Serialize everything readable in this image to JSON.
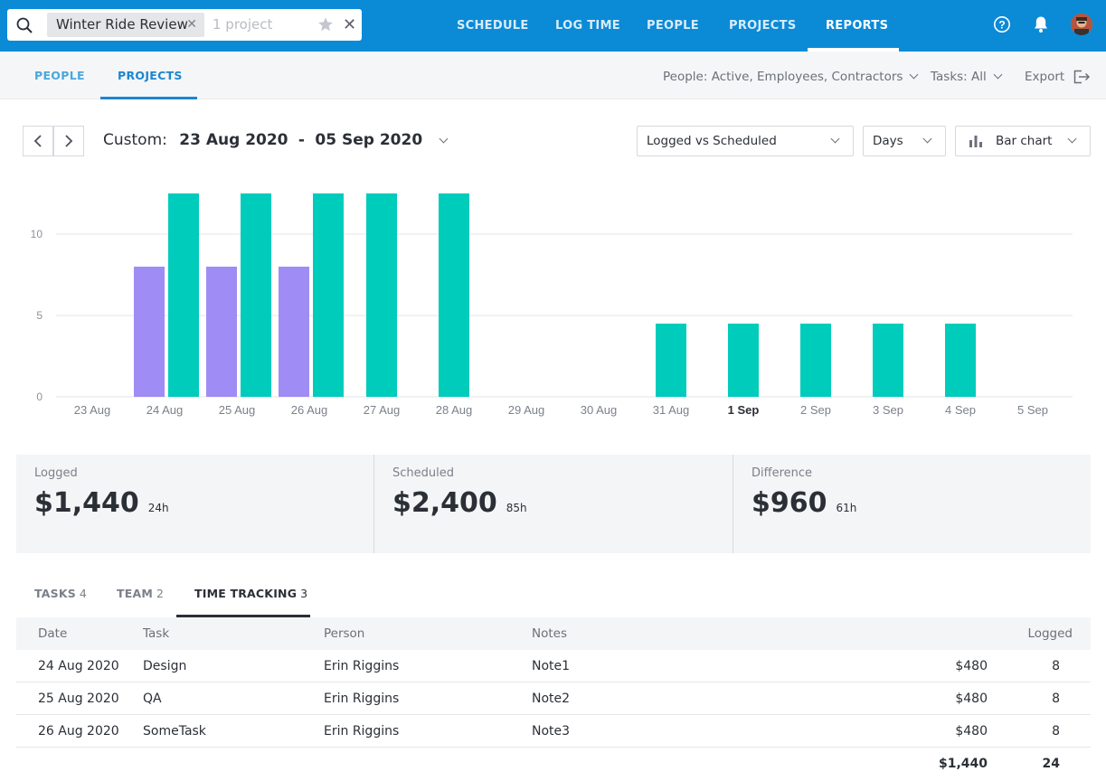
{
  "search": {
    "chip": "Winter Ride Review",
    "placeholder": "1 project"
  },
  "nav": [
    "SCHEDULE",
    "LOG TIME",
    "PEOPLE",
    "PROJECTS",
    "REPORTS"
  ],
  "nav_active": "REPORTS",
  "subnav": {
    "tab_people": "PEOPLE",
    "tab_projects": "PROJECTS",
    "people_filter": "People: Active, Employees, Contractors",
    "tasks_filter": "Tasks: All",
    "export": "Export"
  },
  "controls": {
    "range_prefix": "Custom:",
    "range_start": "23 Aug 2020",
    "range_sep": "-",
    "range_end": "05 Sep 2020",
    "metric_select": "Logged vs Scheduled",
    "interval_select": "Days",
    "chart_type_select": "Bar chart"
  },
  "chart_data": {
    "type": "bar",
    "categories": [
      "23 Aug",
      "24 Aug",
      "25 Aug",
      "26 Aug",
      "27 Aug",
      "28 Aug",
      "29 Aug",
      "30 Aug",
      "31 Aug",
      "1 Sep",
      "2 Sep",
      "3 Sep",
      "4 Sep",
      "5 Sep"
    ],
    "highlight_category": "1 Sep",
    "series": [
      {
        "values": [
          0,
          8,
          8,
          8,
          0,
          0,
          0,
          0,
          0,
          0,
          0,
          0,
          0,
          0
        ],
        "color": "#a08cf5"
      },
      {
        "values": [
          0,
          12.5,
          12.5,
          12.5,
          12.5,
          12.5,
          0,
          0,
          4.5,
          4.5,
          4.5,
          4.5,
          4.5,
          0
        ],
        "color": "#00ccbb"
      }
    ],
    "yticks": [
      0,
      5,
      10
    ],
    "ylim": [
      0,
      12.5
    ],
    "grid": true
  },
  "summary": {
    "logged": {
      "label": "Logged",
      "amount": "$1,440",
      "hours": "24h"
    },
    "scheduled": {
      "label": "Scheduled",
      "amount": "$2,400",
      "hours": "85h"
    },
    "difference": {
      "label": "Difference",
      "amount": "$960",
      "hours": "61h"
    }
  },
  "tabs": {
    "tasks": {
      "label": "TASKS",
      "count": "4"
    },
    "team": {
      "label": "TEAM",
      "count": "2"
    },
    "time": {
      "label": "TIME TRACKING",
      "count": "3"
    }
  },
  "table": {
    "headers": {
      "date": "Date",
      "task": "Task",
      "person": "Person",
      "notes": "Notes",
      "logged": "Logged"
    },
    "rows": [
      {
        "date": "24 Aug 2020",
        "task": "Design",
        "person": "Erin Riggins",
        "notes": "Note1",
        "amount": "$480",
        "hours": "8"
      },
      {
        "date": "25 Aug 2020",
        "task": "QA",
        "person": "Erin Riggins",
        "notes": "Note2",
        "amount": "$480",
        "hours": "8"
      },
      {
        "date": "26 Aug 2020",
        "task": "SomeTask",
        "person": "Erin Riggins",
        "notes": "Note3",
        "amount": "$480",
        "hours": "8"
      }
    ],
    "total": {
      "amount": "$1,440",
      "hours": "24"
    }
  },
  "colors": {
    "topbar": "#0b8ad6",
    "accent": "#1c86d0",
    "logged_bar": "#a08cf5",
    "scheduled_bar": "#00ccbb"
  }
}
